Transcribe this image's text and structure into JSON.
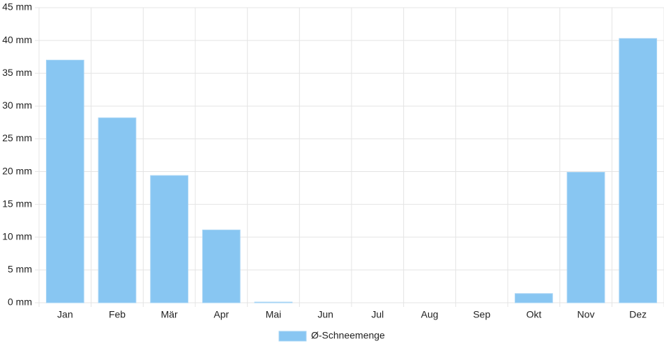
{
  "chart_data": {
    "type": "bar",
    "categories": [
      "Jan",
      "Feb",
      "Mär",
      "Apr",
      "Mai",
      "Jun",
      "Jul",
      "Aug",
      "Sep",
      "Okt",
      "Nov",
      "Dez"
    ],
    "series": [
      {
        "name": "Ø-Schneemenge",
        "color": "#88c6f2",
        "values": [
          37.0,
          28.2,
          19.4,
          11.1,
          0.1,
          0,
          0,
          0,
          0,
          1.4,
          19.9,
          40.3
        ]
      }
    ],
    "ylim": [
      0,
      45
    ],
    "yticks": [
      {
        "value": 0,
        "label": "0 mm"
      },
      {
        "value": 5,
        "label": "5 mm"
      },
      {
        "value": 10,
        "label": "10 mm"
      },
      {
        "value": 15,
        "label": "15 mm"
      },
      {
        "value": 20,
        "label": "20 mm"
      },
      {
        "value": 25,
        "label": "25 mm"
      },
      {
        "value": 30,
        "label": "30 mm"
      },
      {
        "value": 35,
        "label": "35 mm"
      },
      {
        "value": 40,
        "label": "40 mm"
      },
      {
        "value": 45,
        "label": "45 mm"
      }
    ],
    "grid": true,
    "legend": "bottom"
  }
}
